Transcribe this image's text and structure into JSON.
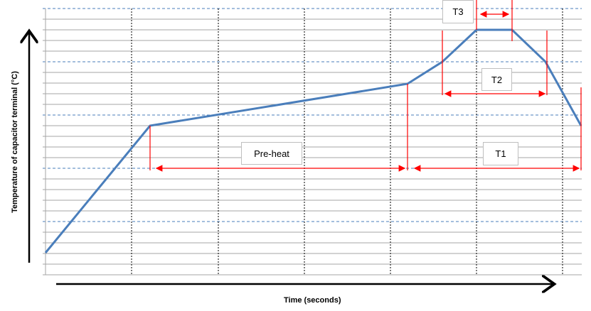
{
  "diagram": {
    "y_axis_label": "Temperature of capacitor terminal (°C)",
    "x_axis_label": "Time (seconds)",
    "phases": {
      "preheat": "Pre-heat",
      "t1": "T1",
      "t2": "T2",
      "t3": "T3"
    },
    "colors": {
      "profile": "#4a7ebb",
      "markers": "#ff0000",
      "major_grid": "#4a7ebb",
      "minor_grid": "#a6a6a6"
    }
  }
}
